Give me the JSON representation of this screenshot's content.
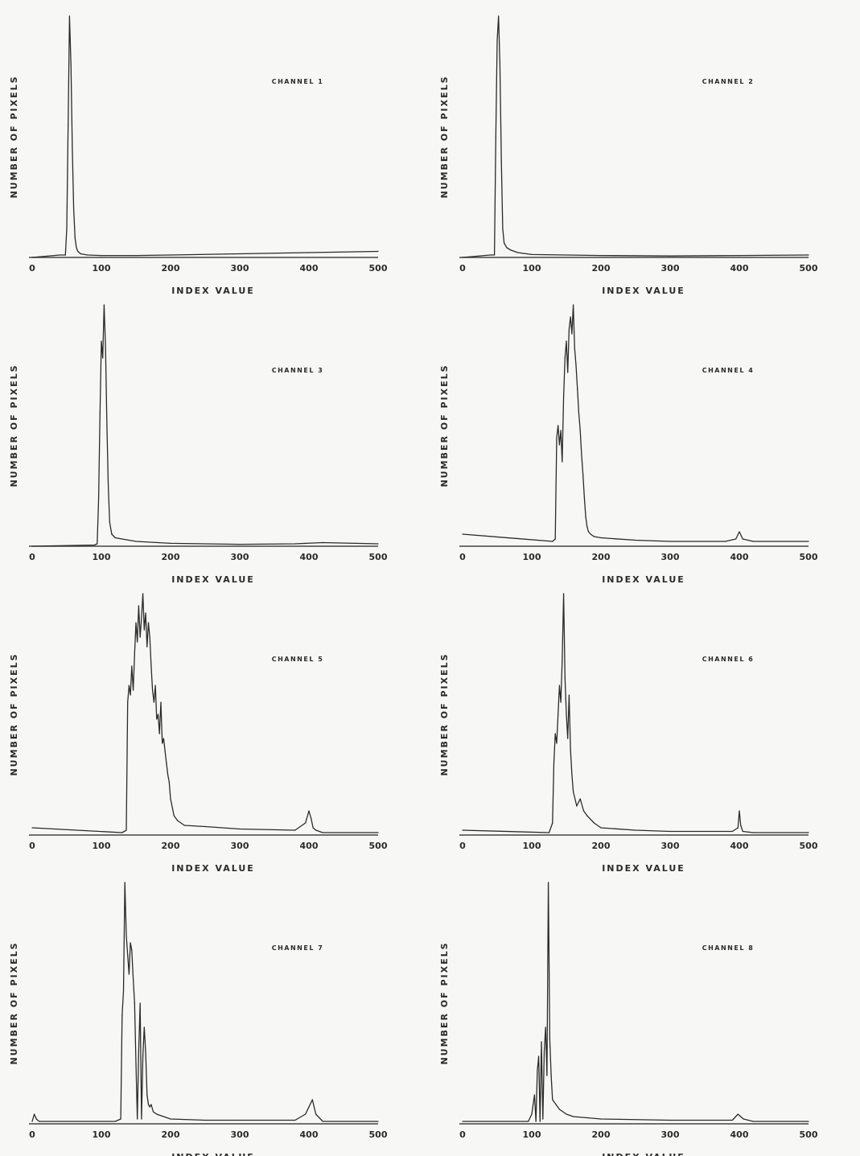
{
  "chart_data": [
    {
      "type": "line",
      "title": "CHANNEL 1",
      "xlabel": "INDEX VALUE",
      "ylabel": "NUMBER OF PIXELS",
      "xlim": [
        0,
        500
      ],
      "ylim": [
        0,
        1
      ],
      "grid": false,
      "x_ticks": [
        "0",
        "100",
        "200",
        "300",
        "400",
        "500"
      ],
      "x": [
        0,
        40,
        48,
        50,
        52,
        54,
        56,
        58,
        60,
        62,
        64,
        66,
        70,
        80,
        100,
        150,
        200,
        300,
        400,
        500
      ],
      "y": [
        0.0,
        0.01,
        0.01,
        0.12,
        0.55,
        1.0,
        0.8,
        0.45,
        0.2,
        0.08,
        0.04,
        0.025,
        0.015,
        0.01,
        0.008,
        0.008,
        0.01,
        0.015,
        0.02,
        0.025
      ]
    },
    {
      "type": "line",
      "title": "CHANNEL 2",
      "xlabel": "INDEX VALUE",
      "ylabel": "NUMBER OF PIXELS",
      "xlim": [
        0,
        500
      ],
      "ylim": [
        0,
        1
      ],
      "grid": false,
      "x_ticks": [
        "0",
        "100",
        "200",
        "300",
        "400",
        "500"
      ],
      "x": [
        0,
        40,
        46,
        48,
        50,
        52,
        54,
        56,
        58,
        60,
        64,
        70,
        80,
        100,
        200,
        300,
        400,
        500
      ],
      "y": [
        0.0,
        0.01,
        0.01,
        0.5,
        0.9,
        1.0,
        0.8,
        0.4,
        0.12,
        0.06,
        0.04,
        0.03,
        0.02,
        0.012,
        0.008,
        0.006,
        0.008,
        0.01
      ]
    },
    {
      "type": "line",
      "title": "CHANNEL 3",
      "xlabel": "INDEX VALUE",
      "ylabel": "NUMBER OF PIXELS",
      "xlim": [
        0,
        500
      ],
      "ylim": [
        0,
        1
      ],
      "grid": false,
      "x_ticks": [
        "0",
        "100",
        "200",
        "300",
        "400",
        "500"
      ],
      "x": [
        0,
        90,
        94,
        96,
        98,
        100,
        102,
        104,
        106,
        108,
        110,
        112,
        115,
        120,
        130,
        150,
        200,
        300,
        380,
        420,
        500
      ],
      "y": [
        0.0,
        0.005,
        0.01,
        0.2,
        0.55,
        0.85,
        0.78,
        1.0,
        0.82,
        0.5,
        0.25,
        0.1,
        0.05,
        0.035,
        0.03,
        0.02,
        0.012,
        0.008,
        0.01,
        0.015,
        0.01
      ]
    },
    {
      "type": "line",
      "title": "CHANNEL 4",
      "xlabel": "INDEX VALUE",
      "ylabel": "NUMBER OF PIXELS",
      "xlim": [
        0,
        500
      ],
      "ylim": [
        0,
        1
      ],
      "grid": false,
      "x_ticks": [
        "0",
        "100",
        "200",
        "300",
        "400",
        "500"
      ],
      "x": [
        0,
        130,
        134,
        136,
        138,
        140,
        142,
        144,
        146,
        148,
        150,
        152,
        154,
        156,
        158,
        160,
        162,
        164,
        166,
        168,
        170,
        172,
        174,
        176,
        178,
        180,
        182,
        185,
        190,
        200,
        250,
        300,
        380,
        395,
        400,
        405,
        420,
        500
      ],
      "y": [
        0.05,
        0.02,
        0.03,
        0.45,
        0.5,
        0.42,
        0.48,
        0.35,
        0.62,
        0.78,
        0.85,
        0.72,
        0.9,
        0.95,
        0.88,
        1.0,
        0.82,
        0.75,
        0.65,
        0.55,
        0.48,
        0.38,
        0.3,
        0.2,
        0.12,
        0.08,
        0.06,
        0.05,
        0.04,
        0.035,
        0.025,
        0.02,
        0.02,
        0.03,
        0.06,
        0.03,
        0.02,
        0.02
      ]
    },
    {
      "type": "line",
      "title": "CHANNEL 5",
      "xlabel": "INDEX VALUE",
      "ylabel": "NUMBER OF PIXELS",
      "xlim": [
        0,
        500
      ],
      "ylim": [
        0,
        1
      ],
      "grid": false,
      "x_ticks": [
        "0",
        "100",
        "200",
        "300",
        "400",
        "500"
      ],
      "x": [
        0,
        130,
        136,
        138,
        140,
        142,
        144,
        146,
        148,
        150,
        152,
        154,
        156,
        158,
        160,
        162,
        164,
        166,
        168,
        170,
        172,
        174,
        176,
        178,
        180,
        182,
        184,
        186,
        188,
        190,
        192,
        194,
        196,
        198,
        200,
        205,
        210,
        220,
        250,
        300,
        380,
        395,
        400,
        403,
        406,
        410,
        420,
        500
      ],
      "y": [
        0.03,
        0.01,
        0.02,
        0.55,
        0.62,
        0.58,
        0.7,
        0.6,
        0.75,
        0.88,
        0.8,
        0.95,
        0.82,
        0.9,
        1.0,
        0.85,
        0.92,
        0.78,
        0.88,
        0.82,
        0.7,
        0.6,
        0.55,
        0.62,
        0.48,
        0.5,
        0.42,
        0.55,
        0.38,
        0.4,
        0.35,
        0.3,
        0.25,
        0.22,
        0.15,
        0.08,
        0.06,
        0.04,
        0.035,
        0.025,
        0.02,
        0.05,
        0.1,
        0.07,
        0.03,
        0.02,
        0.01,
        0.01
      ]
    },
    {
      "type": "line",
      "title": "CHANNEL 6",
      "xlabel": "INDEX VALUE",
      "ylabel": "NUMBER OF PIXELS",
      "xlim": [
        0,
        500
      ],
      "ylim": [
        0,
        1
      ],
      "grid": false,
      "x_ticks": [
        "0",
        "100",
        "200",
        "300",
        "400",
        "500"
      ],
      "x": [
        0,
        125,
        130,
        132,
        134,
        136,
        138,
        140,
        142,
        144,
        146,
        148,
        150,
        152,
        154,
        156,
        158,
        160,
        165,
        170,
        175,
        180,
        190,
        200,
        250,
        300,
        390,
        398,
        400,
        402,
        405,
        420,
        500
      ],
      "y": [
        0.02,
        0.01,
        0.05,
        0.3,
        0.42,
        0.38,
        0.5,
        0.62,
        0.55,
        0.72,
        1.0,
        0.65,
        0.5,
        0.4,
        0.58,
        0.35,
        0.25,
        0.18,
        0.12,
        0.15,
        0.1,
        0.08,
        0.05,
        0.03,
        0.02,
        0.015,
        0.015,
        0.03,
        0.1,
        0.04,
        0.015,
        0.01,
        0.01
      ]
    },
    {
      "type": "line",
      "title": "CHANNEL 7",
      "xlabel": "INDEX VALUE",
      "ylabel": "NUMBER OF PIXELS",
      "xlim": [
        0,
        500
      ],
      "ylim": [
        0,
        1
      ],
      "grid": false,
      "x_ticks": [
        "0",
        "100",
        "200",
        "300",
        "400",
        "500"
      ],
      "x": [
        0,
        3,
        6,
        10,
        120,
        128,
        130,
        132,
        134,
        136,
        138,
        140,
        142,
        144,
        146,
        148,
        150,
        152,
        154,
        156,
        158,
        160,
        162,
        164,
        166,
        168,
        170,
        172,
        175,
        180,
        190,
        200,
        250,
        300,
        380,
        395,
        400,
        405,
        410,
        420,
        500
      ],
      "y": [
        0.01,
        0.04,
        0.02,
        0.01,
        0.01,
        0.02,
        0.45,
        0.55,
        1.0,
        0.78,
        0.7,
        0.62,
        0.75,
        0.72,
        0.6,
        0.5,
        0.25,
        0.02,
        0.3,
        0.5,
        0.02,
        0.28,
        0.4,
        0.3,
        0.12,
        0.08,
        0.07,
        0.08,
        0.05,
        0.04,
        0.03,
        0.02,
        0.015,
        0.015,
        0.015,
        0.04,
        0.07,
        0.1,
        0.04,
        0.01,
        0.01
      ]
    },
    {
      "type": "line",
      "title": "CHANNEL 8",
      "xlabel": "INDEX VALUE",
      "ylabel": "NUMBER OF PIXELS",
      "xlim": [
        0,
        500
      ],
      "ylim": [
        0,
        1
      ],
      "grid": false,
      "x_ticks": [
        "0",
        "100",
        "200",
        "300",
        "400",
        "500"
      ],
      "x": [
        0,
        95,
        100,
        104,
        106,
        108,
        110,
        112,
        114,
        116,
        118,
        120,
        122,
        124,
        126,
        128,
        130,
        135,
        140,
        150,
        160,
        200,
        300,
        390,
        398,
        402,
        406,
        420,
        500
      ],
      "y": [
        0.01,
        0.01,
        0.04,
        0.12,
        0.01,
        0.22,
        0.28,
        0.01,
        0.34,
        0.02,
        0.3,
        0.4,
        0.2,
        1.0,
        0.35,
        0.2,
        0.1,
        0.08,
        0.06,
        0.04,
        0.03,
        0.02,
        0.015,
        0.015,
        0.04,
        0.03,
        0.02,
        0.01,
        0.01
      ]
    }
  ]
}
